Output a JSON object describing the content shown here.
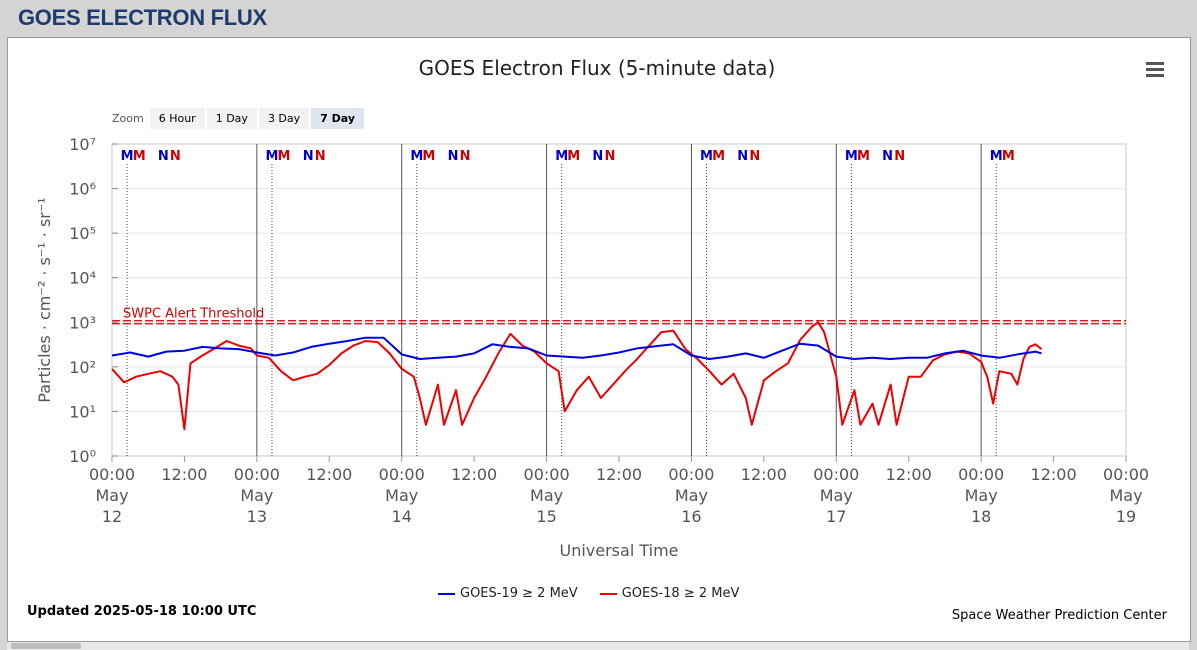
{
  "page": {
    "title": "GOES ELECTRON FLUX"
  },
  "toolbar": {
    "zoom_label": "Zoom",
    "zoom_options": [
      "6 Hour",
      "1 Day",
      "3 Day",
      "7 Day"
    ],
    "active_zoom": "7 Day"
  },
  "footer": {
    "updated": "Updated 2025-05-18 10:00 UTC",
    "credit": "Space Weather Prediction Center"
  },
  "chart_data": {
    "type": "line",
    "title": "GOES Electron Flux (5-minute data)",
    "xlabel": "Universal Time",
    "ylabel": "Particles · cm⁻² · s⁻¹ · sr⁻¹",
    "y_scale": "log",
    "ylim": [
      1,
      10000000
    ],
    "y_ticks": [
      {
        "value": 1,
        "label": "10⁰"
      },
      {
        "value": 10,
        "label": "10¹"
      },
      {
        "value": 100,
        "label": "10²"
      },
      {
        "value": 1000,
        "label": "10³"
      },
      {
        "value": 10000,
        "label": "10⁴"
      },
      {
        "value": 100000,
        "label": "10⁵"
      },
      {
        "value": 1000000,
        "label": "10⁶"
      },
      {
        "value": 10000000,
        "label": "10⁷"
      }
    ],
    "x_range": [
      "2025-05-12 00:00",
      "2025-05-19 00:00"
    ],
    "x_ticks": [
      {
        "time": "2025-05-12 00:00",
        "label": [
          "00:00",
          "May",
          "12"
        ]
      },
      {
        "time": "2025-05-12 12:00",
        "label": [
          "12:00"
        ]
      },
      {
        "time": "2025-05-13 00:00",
        "label": [
          "00:00",
          "May",
          "13"
        ]
      },
      {
        "time": "2025-05-13 12:00",
        "label": [
          "12:00"
        ]
      },
      {
        "time": "2025-05-14 00:00",
        "label": [
          "00:00",
          "May",
          "14"
        ]
      },
      {
        "time": "2025-05-14 12:00",
        "label": [
          "12:00"
        ]
      },
      {
        "time": "2025-05-15 00:00",
        "label": [
          "00:00",
          "May",
          "15"
        ]
      },
      {
        "time": "2025-05-15 12:00",
        "label": [
          "12:00"
        ]
      },
      {
        "time": "2025-05-16 00:00",
        "label": [
          "00:00",
          "May",
          "16"
        ]
      },
      {
        "time": "2025-05-16 12:00",
        "label": [
          "12:00"
        ]
      },
      {
        "time": "2025-05-17 00:00",
        "label": [
          "00:00",
          "May",
          "17"
        ]
      },
      {
        "time": "2025-05-17 12:00",
        "label": [
          "12:00"
        ]
      },
      {
        "time": "2025-05-18 00:00",
        "label": [
          "00:00",
          "May",
          "18"
        ]
      },
      {
        "time": "2025-05-18 12:00",
        "label": [
          "12:00"
        ]
      },
      {
        "time": "2025-05-19 00:00",
        "label": [
          "00:00",
          "May",
          "19"
        ]
      }
    ],
    "threshold": {
      "label": "SWPC Alert Threshold",
      "value": 1000,
      "color": "#cc0000"
    },
    "day_markers": [
      {
        "time": "2025-05-12 02:30",
        "letter": "M",
        "color": "#0000cc"
      },
      {
        "time": "2025-05-12 04:30",
        "letter": "M",
        "color": "#cc0000"
      },
      {
        "time": "2025-05-12 08:30",
        "letter": "N",
        "color": "#0000cc"
      },
      {
        "time": "2025-05-12 10:30",
        "letter": "N",
        "color": "#cc0000"
      },
      {
        "time": "2025-05-13 02:30",
        "letter": "M",
        "color": "#0000cc"
      },
      {
        "time": "2025-05-13 04:30",
        "letter": "M",
        "color": "#cc0000"
      },
      {
        "time": "2025-05-13 08:30",
        "letter": "N",
        "color": "#0000cc"
      },
      {
        "time": "2025-05-13 10:30",
        "letter": "N",
        "color": "#cc0000"
      },
      {
        "time": "2025-05-14 02:30",
        "letter": "M",
        "color": "#0000cc"
      },
      {
        "time": "2025-05-14 04:30",
        "letter": "M",
        "color": "#cc0000"
      },
      {
        "time": "2025-05-14 08:30",
        "letter": "N",
        "color": "#0000cc"
      },
      {
        "time": "2025-05-14 10:30",
        "letter": "N",
        "color": "#cc0000"
      },
      {
        "time": "2025-05-15 02:30",
        "letter": "M",
        "color": "#0000cc"
      },
      {
        "time": "2025-05-15 04:30",
        "letter": "M",
        "color": "#cc0000"
      },
      {
        "time": "2025-05-15 08:30",
        "letter": "N",
        "color": "#0000cc"
      },
      {
        "time": "2025-05-15 10:30",
        "letter": "N",
        "color": "#cc0000"
      },
      {
        "time": "2025-05-16 02:30",
        "letter": "M",
        "color": "#0000cc"
      },
      {
        "time": "2025-05-16 04:30",
        "letter": "M",
        "color": "#cc0000"
      },
      {
        "time": "2025-05-16 08:30",
        "letter": "N",
        "color": "#0000cc"
      },
      {
        "time": "2025-05-16 10:30",
        "letter": "N",
        "color": "#cc0000"
      },
      {
        "time": "2025-05-17 02:30",
        "letter": "M",
        "color": "#0000cc"
      },
      {
        "time": "2025-05-17 04:30",
        "letter": "M",
        "color": "#cc0000"
      },
      {
        "time": "2025-05-17 08:30",
        "letter": "N",
        "color": "#0000cc"
      },
      {
        "time": "2025-05-17 10:30",
        "letter": "N",
        "color": "#cc0000"
      },
      {
        "time": "2025-05-18 02:30",
        "letter": "M",
        "color": "#0000cc"
      },
      {
        "time": "2025-05-18 04:30",
        "letter": "M",
        "color": "#cc0000"
      }
    ],
    "series": [
      {
        "name": "GOES-19 ≥ 2 MeV",
        "color": "#0000dd",
        "points": [
          [
            "2025-05-12 00:00",
            180
          ],
          [
            "2025-05-12 03:00",
            210
          ],
          [
            "2025-05-12 06:00",
            170
          ],
          [
            "2025-05-12 09:00",
            220
          ],
          [
            "2025-05-12 12:00",
            230
          ],
          [
            "2025-05-12 15:00",
            280
          ],
          [
            "2025-05-12 18:00",
            260
          ],
          [
            "2025-05-12 21:00",
            250
          ],
          [
            "2025-05-13 00:00",
            210
          ],
          [
            "2025-05-13 03:00",
            180
          ],
          [
            "2025-05-13 06:00",
            210
          ],
          [
            "2025-05-13 09:00",
            280
          ],
          [
            "2025-05-13 12:00",
            330
          ],
          [
            "2025-05-13 15:00",
            380
          ],
          [
            "2025-05-13 18:00",
            450
          ],
          [
            "2025-05-13 21:00",
            450
          ],
          [
            "2025-05-14 00:00",
            190
          ],
          [
            "2025-05-14 03:00",
            150
          ],
          [
            "2025-05-14 06:00",
            160
          ],
          [
            "2025-05-14 09:00",
            170
          ],
          [
            "2025-05-14 12:00",
            200
          ],
          [
            "2025-05-14 15:00",
            320
          ],
          [
            "2025-05-14 18:00",
            280
          ],
          [
            "2025-05-14 21:00",
            260
          ],
          [
            "2025-05-15 00:00",
            180
          ],
          [
            "2025-05-15 03:00",
            170
          ],
          [
            "2025-05-15 06:00",
            160
          ],
          [
            "2025-05-15 09:00",
            180
          ],
          [
            "2025-05-15 12:00",
            210
          ],
          [
            "2025-05-15 15:00",
            260
          ],
          [
            "2025-05-15 18:00",
            290
          ],
          [
            "2025-05-15 21:00",
            320
          ],
          [
            "2025-05-16 00:00",
            180
          ],
          [
            "2025-05-16 03:00",
            150
          ],
          [
            "2025-05-16 06:00",
            170
          ],
          [
            "2025-05-16 09:00",
            200
          ],
          [
            "2025-05-16 12:00",
            160
          ],
          [
            "2025-05-16 15:00",
            230
          ],
          [
            "2025-05-16 18:00",
            330
          ],
          [
            "2025-05-16 21:00",
            300
          ],
          [
            "2025-05-17 00:00",
            170
          ],
          [
            "2025-05-17 03:00",
            150
          ],
          [
            "2025-05-17 06:00",
            160
          ],
          [
            "2025-05-17 09:00",
            150
          ],
          [
            "2025-05-17 12:00",
            160
          ],
          [
            "2025-05-17 15:00",
            160
          ],
          [
            "2025-05-17 18:00",
            200
          ],
          [
            "2025-05-17 21:00",
            230
          ],
          [
            "2025-05-18 00:00",
            180
          ],
          [
            "2025-05-18 03:00",
            160
          ],
          [
            "2025-05-18 06:00",
            190
          ],
          [
            "2025-05-18 09:00",
            220
          ],
          [
            "2025-05-18 10:00",
            200
          ]
        ]
      },
      {
        "name": "GOES-18 ≥ 2 MeV",
        "color": "#ee0000",
        "points": [
          [
            "2025-05-12 00:00",
            90
          ],
          [
            "2025-05-12 02:00",
            45
          ],
          [
            "2025-05-12 04:00",
            60
          ],
          [
            "2025-05-12 06:00",
            70
          ],
          [
            "2025-05-12 08:00",
            80
          ],
          [
            "2025-05-12 10:00",
            60
          ],
          [
            "2025-05-12 11:00",
            40
          ],
          [
            "2025-05-12 12:00",
            4
          ],
          [
            "2025-05-12 13:00",
            120
          ],
          [
            "2025-05-12 15:00",
            180
          ],
          [
            "2025-05-12 17:00",
            260
          ],
          [
            "2025-05-12 19:00",
            380
          ],
          [
            "2025-05-12 21:00",
            300
          ],
          [
            "2025-05-12 23:00",
            260
          ],
          [
            "2025-05-13 00:00",
            180
          ],
          [
            "2025-05-13 02:00",
            160
          ],
          [
            "2025-05-13 04:00",
            80
          ],
          [
            "2025-05-13 06:00",
            50
          ],
          [
            "2025-05-13 08:00",
            60
          ],
          [
            "2025-05-13 10:00",
            70
          ],
          [
            "2025-05-13 12:00",
            110
          ],
          [
            "2025-05-13 14:00",
            200
          ],
          [
            "2025-05-13 16:00",
            300
          ],
          [
            "2025-05-13 18:00",
            380
          ],
          [
            "2025-05-13 20:00",
            360
          ],
          [
            "2025-05-13 22:00",
            200
          ],
          [
            "2025-05-14 00:00",
            90
          ],
          [
            "2025-05-14 02:00",
            60
          ],
          [
            "2025-05-14 03:00",
            20
          ],
          [
            "2025-05-14 04:00",
            5
          ],
          [
            "2025-05-14 06:00",
            40
          ],
          [
            "2025-05-14 07:00",
            5
          ],
          [
            "2025-05-14 09:00",
            30
          ],
          [
            "2025-05-14 10:00",
            5
          ],
          [
            "2025-05-14 12:00",
            20
          ],
          [
            "2025-05-14 14:00",
            60
          ],
          [
            "2025-05-14 16:00",
            200
          ],
          [
            "2025-05-14 18:00",
            550
          ],
          [
            "2025-05-14 20:00",
            300
          ],
          [
            "2025-05-14 22:00",
            220
          ],
          [
            "2025-05-15 00:00",
            120
          ],
          [
            "2025-05-15 02:00",
            80
          ],
          [
            "2025-05-15 03:00",
            10
          ],
          [
            "2025-05-15 05:00",
            30
          ],
          [
            "2025-05-15 07:00",
            60
          ],
          [
            "2025-05-15 09:00",
            20
          ],
          [
            "2025-05-15 11:00",
            40
          ],
          [
            "2025-05-15 13:00",
            80
          ],
          [
            "2025-05-15 15:00",
            150
          ],
          [
            "2025-05-15 17:00",
            300
          ],
          [
            "2025-05-15 19:00",
            600
          ],
          [
            "2025-05-15 21:00",
            650
          ],
          [
            "2025-05-15 23:00",
            250
          ],
          [
            "2025-05-16 01:00",
            150
          ],
          [
            "2025-05-16 03:00",
            80
          ],
          [
            "2025-05-16 05:00",
            40
          ],
          [
            "2025-05-16 07:00",
            70
          ],
          [
            "2025-05-16 09:00",
            20
          ],
          [
            "2025-05-16 10:00",
            5
          ],
          [
            "2025-05-16 12:00",
            50
          ],
          [
            "2025-05-16 14:00",
            80
          ],
          [
            "2025-05-16 16:00",
            120
          ],
          [
            "2025-05-16 18:00",
            400
          ],
          [
            "2025-05-16 20:00",
            800
          ],
          [
            "2025-05-16 21:00",
            1000
          ],
          [
            "2025-05-16 22:00",
            600
          ],
          [
            "2025-05-17 00:00",
            60
          ],
          [
            "2025-05-17 01:00",
            5
          ],
          [
            "2025-05-17 03:00",
            30
          ],
          [
            "2025-05-17 04:00",
            5
          ],
          [
            "2025-05-17 06:00",
            15
          ],
          [
            "2025-05-17 07:00",
            5
          ],
          [
            "2025-05-17 09:00",
            40
          ],
          [
            "2025-05-17 10:00",
            5
          ],
          [
            "2025-05-17 12:00",
            60
          ],
          [
            "2025-05-17 14:00",
            60
          ],
          [
            "2025-05-17 16:00",
            140
          ],
          [
            "2025-05-17 18:00",
            190
          ],
          [
            "2025-05-17 20:00",
            220
          ],
          [
            "2025-05-17 22:00",
            200
          ],
          [
            "2025-05-18 00:00",
            130
          ],
          [
            "2025-05-18 01:00",
            60
          ],
          [
            "2025-05-18 02:00",
            15
          ],
          [
            "2025-05-18 03:00",
            80
          ],
          [
            "2025-05-18 05:00",
            70
          ],
          [
            "2025-05-18 06:00",
            40
          ],
          [
            "2025-05-18 07:00",
            150
          ],
          [
            "2025-05-18 08:00",
            280
          ],
          [
            "2025-05-18 09:00",
            320
          ],
          [
            "2025-05-18 10:00",
            250
          ]
        ]
      }
    ],
    "legend_position": "bottom-center"
  }
}
